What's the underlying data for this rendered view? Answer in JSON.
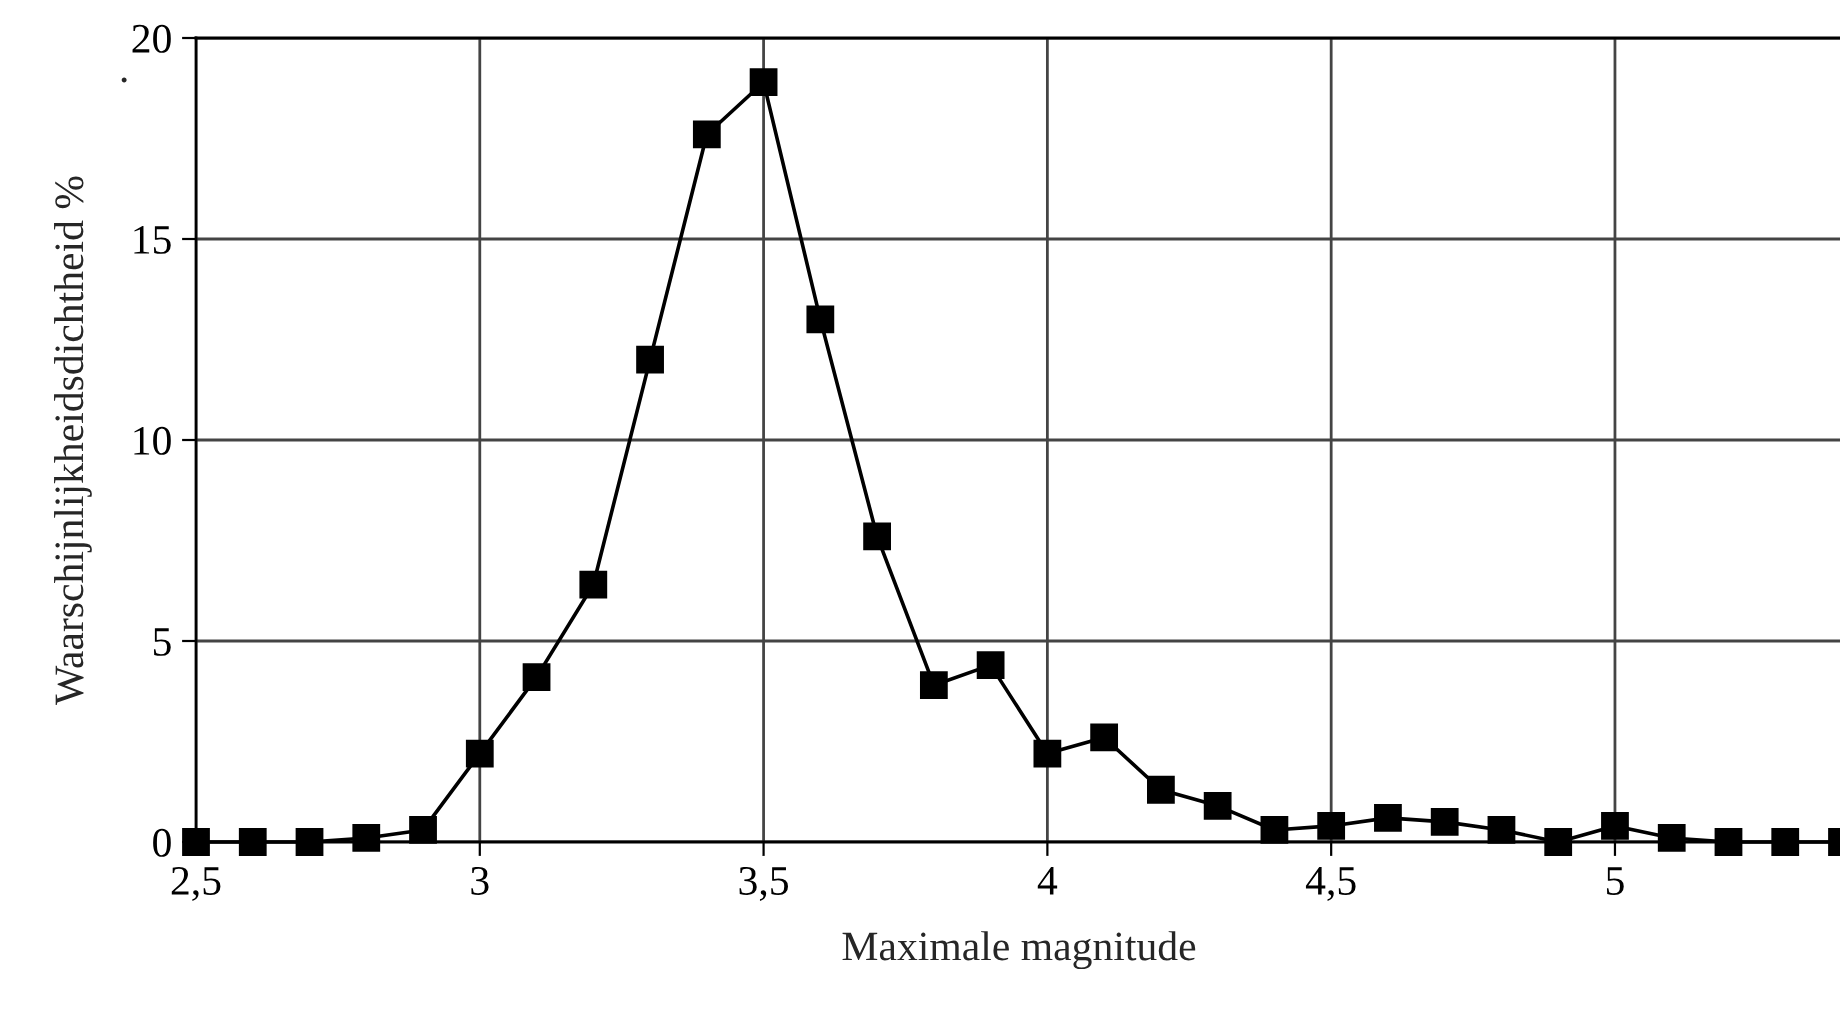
{
  "chart_data": {
    "type": "line",
    "xlabel": "Maximale magnitude",
    "ylabel": "Waarschijnlijkheidsdichtheid %",
    "annotations": [
      "."
    ],
    "x": [
      2.5,
      2.6,
      2.7,
      2.8,
      2.9,
      3.0,
      3.1,
      3.2,
      3.3,
      3.4,
      3.5,
      3.6,
      3.7,
      3.8,
      3.9,
      4.0,
      4.1,
      4.2,
      4.3,
      4.4,
      4.5,
      4.6,
      4.7,
      4.8,
      4.9,
      5.0,
      5.1,
      5.2,
      5.3,
      5.4
    ],
    "series": [
      {
        "color": "#000000",
        "values": [
          0,
          0,
          0,
          0.1,
          0.3,
          2.2,
          4.1,
          6.4,
          12.0,
          17.6,
          18.9,
          13.0,
          7.6,
          3.9,
          4.4,
          2.2,
          2.6,
          1.3,
          0.9,
          0.3,
          0.4,
          0.6,
          0.5,
          0.3,
          0,
          0.4,
          0.1,
          0,
          0,
          0
        ]
      }
    ],
    "xlim": [
      2.5,
      5.4
    ],
    "ylim": [
      0,
      20
    ],
    "xticks": [
      {
        "value": 2.5,
        "label": "2,5"
      },
      3,
      {
        "value": 3.5,
        "label": "3,5"
      },
      4,
      {
        "value": 4.5,
        "label": "4,5"
      },
      5
    ],
    "yticks": [
      0,
      5,
      10,
      15,
      20
    ],
    "grid": true,
    "marker": "square",
    "line_style": "solid",
    "legend": false
  }
}
